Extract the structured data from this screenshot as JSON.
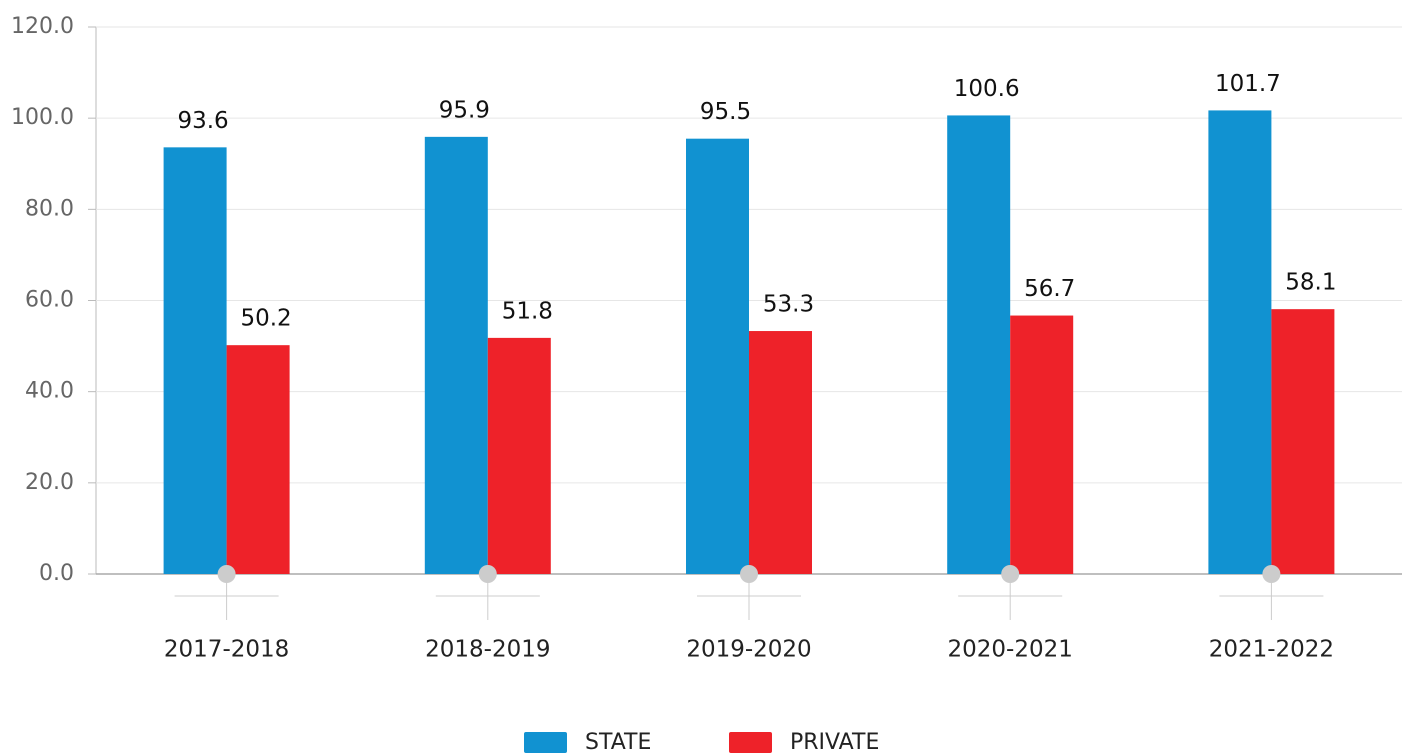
{
  "chart_data": {
    "type": "bar",
    "categories": [
      "2017-2018",
      "2018-2019",
      "2019-2020",
      "2020-2021",
      "2021-2022"
    ],
    "series": [
      {
        "name": "STATE",
        "color": "#1192d1",
        "values": [
          93.6,
          95.9,
          95.5,
          100.6,
          101.7
        ]
      },
      {
        "name": "PRIVATE",
        "color": "#ee2229",
        "values": [
          50.2,
          51.8,
          53.3,
          56.7,
          58.1
        ]
      }
    ],
    "ylim": [
      0,
      120
    ],
    "yticks": [
      {
        "value": 0,
        "label": "0.0"
      },
      {
        "value": 20,
        "label": "20.0"
      },
      {
        "value": 40,
        "label": "40.0"
      },
      {
        "value": 60,
        "label": "60.0"
      },
      {
        "value": 80,
        "label": "80.0"
      },
      {
        "value": 100,
        "label": "100.0"
      },
      {
        "value": 120,
        "label": "120.0"
      }
    ],
    "grid": true,
    "legend": "bottom"
  }
}
